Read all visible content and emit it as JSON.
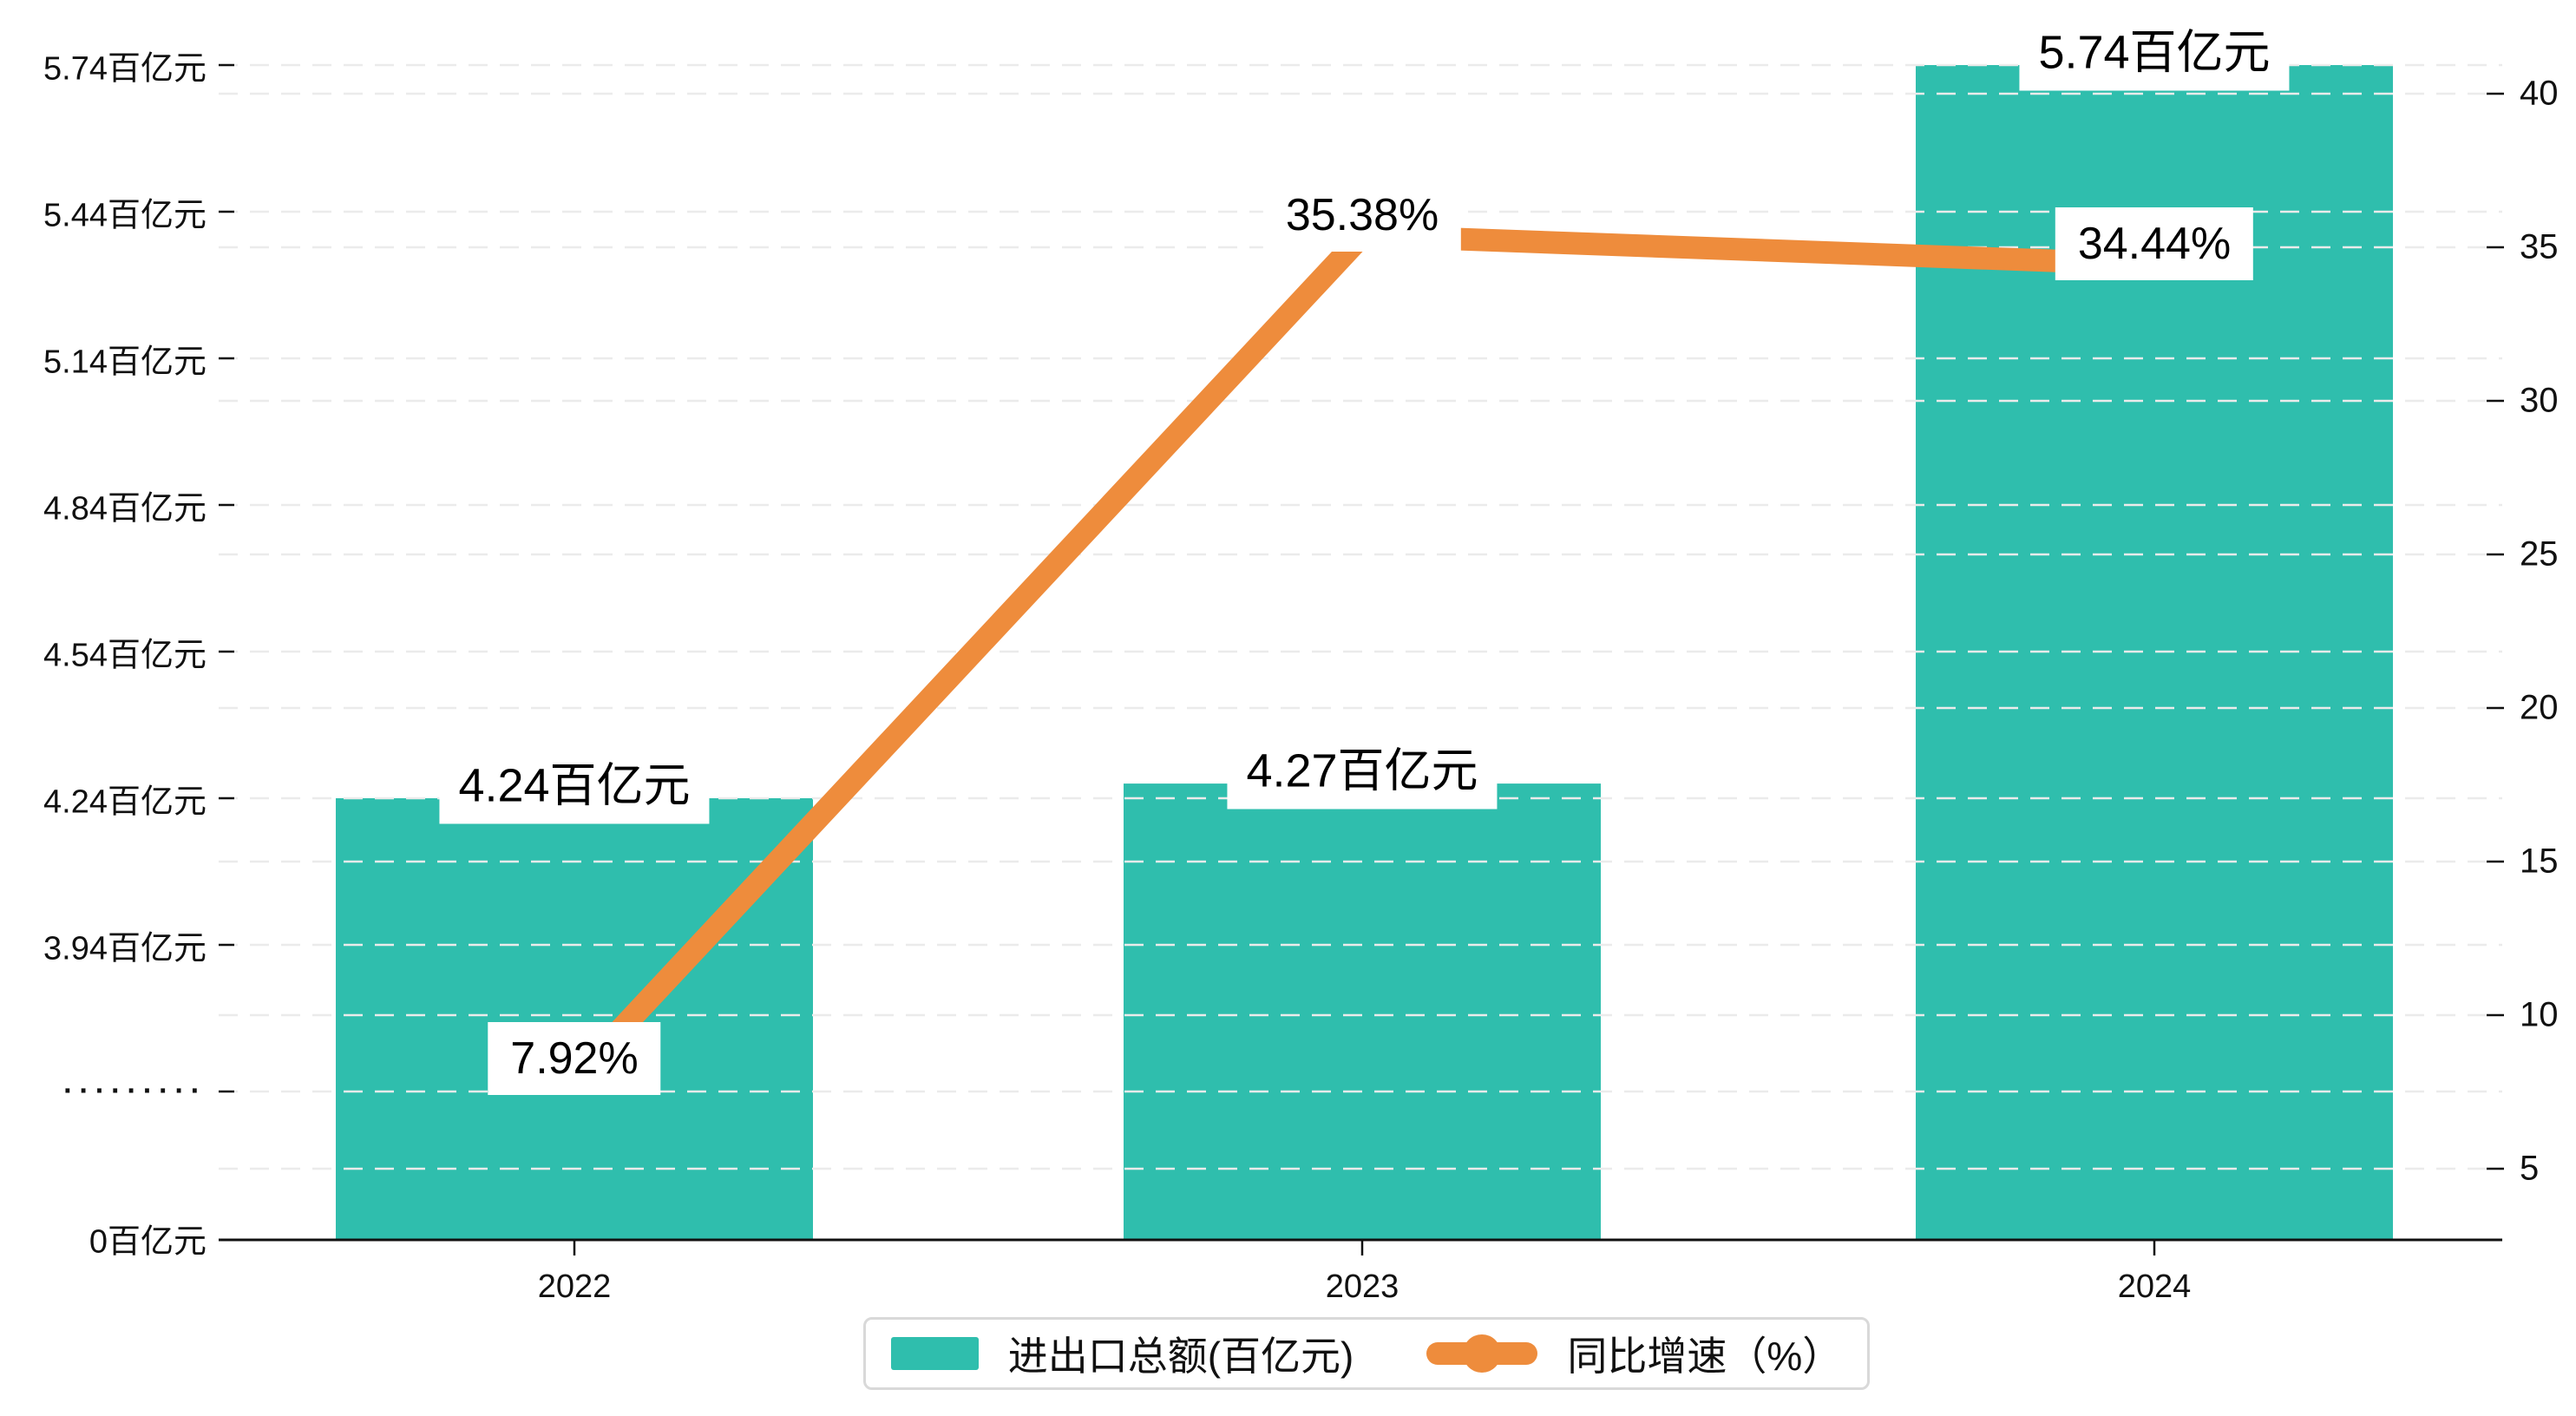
{
  "chart_data": {
    "type": "bar",
    "title": "",
    "categories": [
      "2022",
      "2023",
      "2024"
    ],
    "series": [
      {
        "name": "进出口总额(百亿元)",
        "type": "bar",
        "axis": "left",
        "values": [
          4.24,
          4.27,
          5.74
        ],
        "data_labels": [
          "4.24百亿元",
          "4.27百亿元",
          "5.74百亿元"
        ]
      },
      {
        "name": "同比增速（%）",
        "type": "line",
        "axis": "right",
        "values": [
          7.92,
          35.38,
          34.44
        ],
        "data_labels": [
          "7.92%",
          "35.38%",
          "34.44%"
        ]
      }
    ],
    "left_axis": {
      "unit": "百亿元",
      "tick_labels": [
        "5.74百亿元",
        "5.44百亿元",
        "5.14百亿元",
        "4.84百亿元",
        "4.54百亿元",
        "4.24百亿元",
        "3.94百亿元",
        "·········",
        "0百亿元"
      ],
      "has_break": true,
      "top_range": [
        3.94,
        5.74
      ],
      "step": 0.3
    },
    "right_axis": {
      "tick_labels": [
        "40",
        "35",
        "30",
        "25",
        "20",
        "15",
        "10",
        "5"
      ],
      "tick_values": [
        40,
        35,
        30,
        25,
        20,
        15,
        10,
        5
      ],
      "range": [
        5,
        40
      ]
    },
    "legend_position": "bottom",
    "grid": "dashed-horizontal"
  },
  "colors": {
    "bar": "#2FBEAD",
    "line": "#EE8C3C",
    "grid": "#ebebeb",
    "axis": "#111111",
    "text": "#111111",
    "label_bg": "#ffffff",
    "legend_border": "#d9d9d9"
  }
}
